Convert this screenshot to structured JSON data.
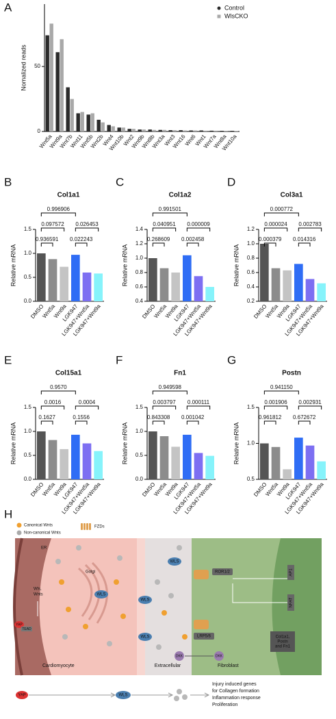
{
  "chart_data": [
    {
      "type": "bar",
      "label": "A",
      "y_label": "Nomalized reads",
      "categories": [
        "Wnt5a",
        "Wnt9a",
        "Wnt7b",
        "Wnt11",
        "Wnt5b",
        "Wnt2b",
        "Wnt4",
        "Wnt10b",
        "Wnt2",
        "Wnt9b",
        "Wnt8b",
        "Wnt3a",
        "Wnt3",
        "Wnt16",
        "Wnt6",
        "Wnt1",
        "Wnt7a",
        "Wnt8a",
        "Wnt10a"
      ],
      "series": [
        {
          "name": "Control",
          "color": "#2b2b2b",
          "values": [
            74,
            61,
            34,
            14,
            13,
            9,
            5,
            3,
            2,
            1.5,
            1.5,
            1.2,
            1,
            1,
            0.8,
            0.8,
            0.6,
            0.5,
            0.5
          ]
        },
        {
          "name": "WlsCKO",
          "color": "#a9a9a9",
          "values": [
            83,
            71,
            25,
            15,
            14,
            7,
            4,
            3,
            2,
            1.5,
            1.2,
            1.2,
            1,
            0.8,
            0.8,
            0.6,
            0.6,
            0.5,
            0.4
          ]
        }
      ],
      "ylim": [
        0,
        98
      ],
      "yticks": [
        0,
        50
      ],
      "legend": "top-right"
    },
    {
      "type": "bar",
      "label": "B",
      "title": "Col1a1",
      "y_label": "Relative mRNA",
      "categories": [
        "DMSO",
        "Wnt5a",
        "Wnt9a",
        "LGK947",
        "LGK947+Wnt5a",
        "LGK947+Wnt9a"
      ],
      "values": [
        1.0,
        0.88,
        0.72,
        0.97,
        0.6,
        0.58
      ],
      "colors": [
        "#555555",
        "#8c8c8c",
        "#c4c4c4",
        "#2f6df5",
        "#7d6ff2",
        "#86f3fb"
      ],
      "ylim": [
        0,
        1.5
      ],
      "yticks": [
        {
          "value": 0,
          "label": "0.0"
        },
        0.5,
        {
          "value": 1,
          "label": "1.0"
        },
        1.5
      ],
      "comparisons": [
        {
          "from": "DMSO",
          "to": "Wnt5a",
          "p": "0.936591"
        },
        {
          "from": "DMSO",
          "to": "Wnt9a",
          "p": "0.097572"
        },
        {
          "from": "DMSO",
          "to": "LGK947",
          "p": "0.996906"
        },
        {
          "from": "LGK947",
          "to": "LGK947+Wnt5a",
          "p": "0.022243"
        },
        {
          "from": "LGK947",
          "to": "LGK947+Wnt9a",
          "p": "0.026453"
        }
      ]
    },
    {
      "type": "bar",
      "label": "C",
      "title": "Col1a2",
      "y_label": "Relative mRNA",
      "categories": [
        "DMSO",
        "Wnt5a",
        "Wnt9a",
        "LGK947",
        "LGK947+Wnt5a",
        "LGK947+Wnt9a"
      ],
      "values": [
        1.0,
        0.86,
        0.8,
        1.04,
        0.75,
        0.6
      ],
      "colors": [
        "#555555",
        "#8c8c8c",
        "#c4c4c4",
        "#2f6df5",
        "#7d6ff2",
        "#86f3fb"
      ],
      "ylim": [
        0.4,
        1.4
      ],
      "yticks": [
        0.4,
        0.6,
        0.8,
        {
          "value": 1,
          "label": "1.0"
        },
        1.2,
        1.4
      ],
      "comparisons": [
        {
          "from": "DMSO",
          "to": "Wnt5a",
          "p": "0.268609"
        },
        {
          "from": "DMSO",
          "to": "Wnt9a",
          "p": "0.040951"
        },
        {
          "from": "DMSO",
          "to": "LGK947",
          "p": "0.991501"
        },
        {
          "from": "LGK947",
          "to": "LGK947+Wnt5a",
          "p": "0.002458"
        },
        {
          "from": "LGK947",
          "to": "LGK947+Wnt9a",
          "p": "0.000009"
        }
      ]
    },
    {
      "type": "bar",
      "label": "D",
      "title": "Col3a1",
      "y_label": "Relative mRNA",
      "categories": [
        "DMSO",
        "Wnt5a",
        "Wnt9a",
        "LGK947",
        "LGK947+Wnt5a",
        "LGK947+Wnt9a"
      ],
      "values": [
        1.0,
        0.66,
        0.63,
        0.72,
        0.51,
        0.45
      ],
      "colors": [
        "#555555",
        "#8c8c8c",
        "#c4c4c4",
        "#2f6df5",
        "#7d6ff2",
        "#86f3fb"
      ],
      "ylim": [
        0.2,
        1.2
      ],
      "yticks": [
        0.2,
        0.4,
        0.6,
        0.8,
        {
          "value": 1,
          "label": "1.0"
        },
        1.2
      ],
      "comparisons": [
        {
          "from": "DMSO",
          "to": "Wnt5a",
          "p": "0.000379"
        },
        {
          "from": "DMSO",
          "to": "Wnt9a",
          "p": "0.000024"
        },
        {
          "from": "DMSO",
          "to": "LGK947",
          "p": "0.000772"
        },
        {
          "from": "LGK947",
          "to": "LGK947+Wnt5a",
          "p": "0.014316"
        },
        {
          "from": "LGK947",
          "to": "LGK947+Wnt9a",
          "p": "0.002783"
        }
      ]
    },
    {
      "type": "bar",
      "label": "E",
      "title": "Col15a1",
      "y_label": "Relative mRNA",
      "categories": [
        "DMSO",
        "Wnt5a",
        "Wnt9a",
        "LGK947",
        "LGK947+Wnt5a",
        "LGK947+Wnt9a"
      ],
      "values": [
        1.0,
        0.82,
        0.63,
        0.93,
        0.75,
        0.59
      ],
      "colors": [
        "#555555",
        "#8c8c8c",
        "#c4c4c4",
        "#2f6df5",
        "#7d6ff2",
        "#86f3fb"
      ],
      "ylim": [
        0,
        1.5
      ],
      "yticks": [
        {
          "value": 0,
          "label": "0.0"
        },
        0.5,
        {
          "value": 1,
          "label": "1.0"
        },
        1.5
      ],
      "comparisons": [
        {
          "from": "DMSO",
          "to": "Wnt5a",
          "p": "0.1627"
        },
        {
          "from": "DMSO",
          "to": "Wnt9a",
          "p": "0.0016"
        },
        {
          "from": "DMSO",
          "to": "LGK947",
          "p": "0.9570"
        },
        {
          "from": "LGK947",
          "to": "LGK947+Wnt5a",
          "p": "0.1556"
        },
        {
          "from": "LGK947",
          "to": "LGK947+Wnt9a",
          "p": "0.0004"
        }
      ]
    },
    {
      "type": "bar",
      "label": "F",
      "title": "Fn1",
      "y_label": "Relative mRNA",
      "categories": [
        "DMSO",
        "Wnt5a",
        "Wnt9a",
        "LGK947",
        "LGK947+Wnt5a",
        "LGK947+Wnt9a"
      ],
      "values": [
        1.0,
        0.9,
        0.68,
        0.93,
        0.55,
        0.49
      ],
      "colors": [
        "#555555",
        "#8c8c8c",
        "#c4c4c4",
        "#2f6df5",
        "#7d6ff2",
        "#86f3fb"
      ],
      "ylim": [
        0,
        1.5
      ],
      "yticks": [
        {
          "value": 0,
          "label": "0.0"
        },
        0.5,
        {
          "value": 1,
          "label": "1.0"
        },
        1.5
      ],
      "comparisons": [
        {
          "from": "DMSO",
          "to": "Wnt5a",
          "p": "0.843308"
        },
        {
          "from": "DMSO",
          "to": "Wnt9a",
          "p": "0.003797"
        },
        {
          "from": "DMSO",
          "to": "LGK947",
          "p": "0.949598"
        },
        {
          "from": "LGK947",
          "to": "LGK947+Wnt5a",
          "p": "0.001042"
        },
        {
          "from": "LGK947",
          "to": "LGK947+Wnt9a",
          "p": "0.000111"
        }
      ]
    },
    {
      "type": "bar",
      "label": "G",
      "title": "Postn",
      "y_label": "Relative mRNA",
      "categories": [
        "DMSO",
        "Wnt5a",
        "Wnt9a",
        "LGK947",
        "LGK947+Wnt5a",
        "LGK947+Wnt9a"
      ],
      "values": [
        1.0,
        0.95,
        0.64,
        1.08,
        0.97,
        0.75
      ],
      "colors": [
        "#555555",
        "#8c8c8c",
        "#c4c4c4",
        "#2f6df5",
        "#7d6ff2",
        "#86f3fb"
      ],
      "ylim": [
        0.5,
        1.5
      ],
      "yticks": [
        0.5,
        {
          "value": 1,
          "label": "1.0"
        },
        1.5
      ],
      "comparisons": [
        {
          "from": "DMSO",
          "to": "Wnt5a",
          "p": "0.961812"
        },
        {
          "from": "DMSO",
          "to": "Wnt9a",
          "p": "0.001906"
        },
        {
          "from": "DMSO",
          "to": "LGK947",
          "p": "0.941150"
        },
        {
          "from": "LGK947",
          "to": "LGK947+Wnt5a",
          "p": "0.672672"
        },
        {
          "from": "LGK947",
          "to": "LGK947+Wnt9a",
          "p": "0.002931"
        }
      ]
    }
  ],
  "diagram": {
    "label": "H",
    "legend": [
      "Canonical Wnts",
      "Non-canonical Wnts",
      "FZDs"
    ],
    "regions": [
      "Cardiomyocyte",
      "Extracellular",
      "Fibroblast"
    ],
    "organelles": [
      "ER",
      "Golgi"
    ],
    "proteins": {
      "wls": "WLS",
      "wls_short": "Wls,",
      "wnts": "Wnts",
      "yap": "YAP",
      "tead": "TEAD",
      "ror": "ROR1/2",
      "lrp": "LRP5/6",
      "dkk": "DKK",
      "ap1": "AP1",
      "nfat": "NFAT",
      "targets": [
        "Col1a1,",
        "Postn",
        "and Fn1"
      ]
    },
    "outcome": [
      "Injury induced genes",
      "for Collagen formation",
      "Inflammation response",
      "Proliferation"
    ]
  }
}
